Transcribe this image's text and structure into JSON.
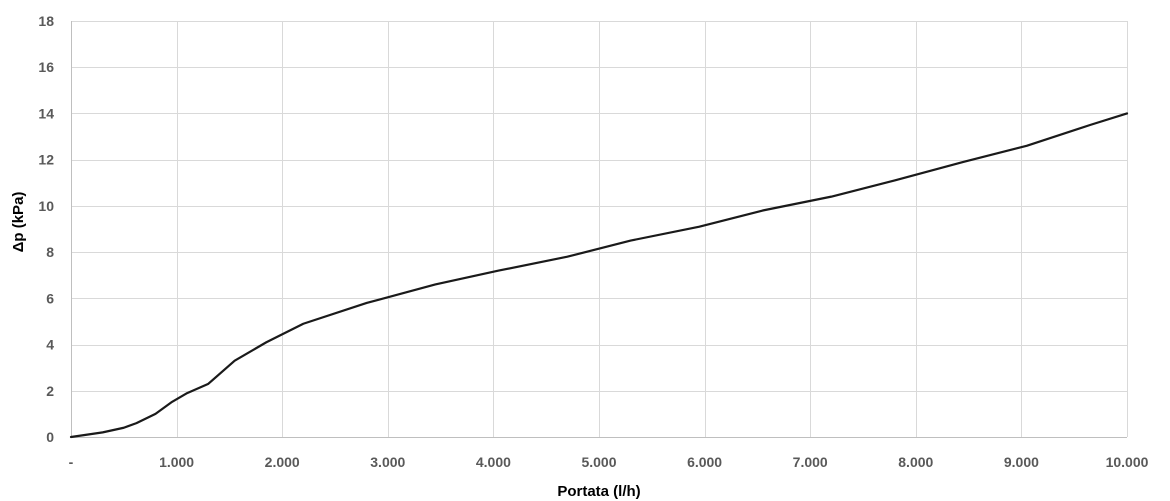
{
  "chart_data": {
    "type": "line",
    "xlabel": "Portata (l/h)",
    "ylabel": "Δp (kPa)",
    "xlim": [
      0,
      10000
    ],
    "ylim": [
      0,
      18
    ],
    "grid": true,
    "x_tick_labels": [
      "-",
      "1.000",
      "2.000",
      "3.000",
      "4.000",
      "5.000",
      "6.000",
      "7.000",
      "8.000",
      "9.000",
      "10.000"
    ],
    "y_tick_labels": [
      "0",
      "2",
      "4",
      "6",
      "8",
      "10",
      "12",
      "14",
      "16",
      "18"
    ],
    "series": [
      {
        "x": [
          0,
          300,
          500,
          620,
          800,
          950,
          1100,
          1300,
          1550,
          1850,
          2200,
          2800,
          3450,
          4050,
          4700,
          5300,
          5950,
          6550,
          7200,
          7800,
          8450,
          9050,
          9650,
          10000
        ],
        "y": [
          0,
          0.2,
          0.4,
          0.6,
          1.0,
          1.5,
          1.9,
          2.3,
          3.3,
          4.1,
          4.9,
          5.8,
          6.6,
          7.2,
          7.8,
          8.5,
          9.1,
          9.8,
          10.4,
          11.1,
          11.9,
          12.6,
          13.5,
          14.0
        ],
        "color": "#1a1a1a"
      }
    ]
  }
}
